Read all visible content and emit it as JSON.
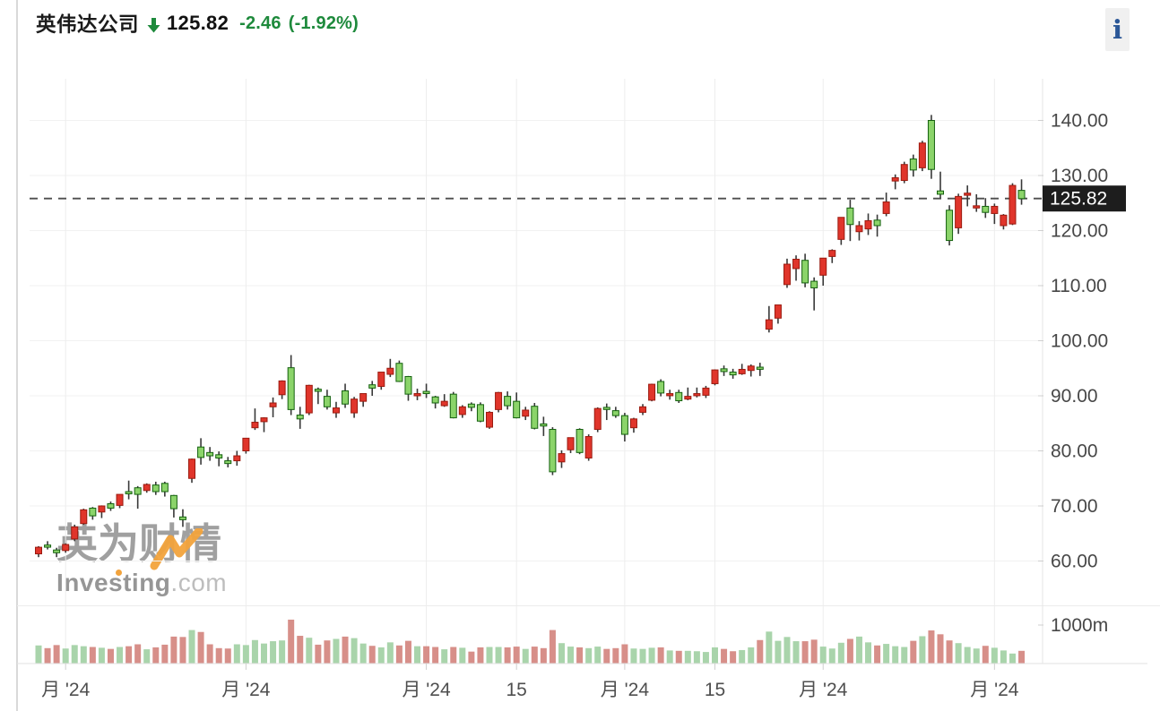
{
  "header": {
    "title": "英伟达公司",
    "price": "125.82",
    "change": "-2.46",
    "change_percent": "(-1.92%)",
    "direction": "down"
  },
  "info_button": {
    "label": "i"
  },
  "watermark": {
    "cn": "英为财情",
    "en_bold": "Investing",
    "en_suffix": ".com"
  },
  "colors": {
    "accent_green": "#1e8a3c",
    "up": "#e0352b",
    "up_border": "#9b1b10",
    "down": "#8bd46a",
    "down_border": "#15610f",
    "wick": "#383838",
    "vol_up": "#a9d4ab",
    "vol_down": "#d78f89",
    "grid_h": "#f1f1f1",
    "grid_v": "#ededed",
    "axis_line": "#e4e4e4",
    "tick": "#cfcfcf",
    "axis_text": "#474747",
    "x_text": "#4f4f4f",
    "dashed": "#4d4d4d",
    "tag_bg": "#1d1d1d",
    "tag_text": "#ffffff",
    "border_left": "#d9d9d9",
    "separator": "#ececec",
    "watermark_orange": "#f2a33c",
    "info_bg": "#f0f0f0",
    "info_text": "#2b5797"
  },
  "chart_data": {
    "type": "candlestick",
    "legend_position": "none",
    "grid": true,
    "price_axis_range": [
      52,
      147
    ],
    "last_price": 125.82,
    "last_price_label": "125.82",
    "y_ticks": [
      {
        "value": 140,
        "label": "140.00"
      },
      {
        "value": 130,
        "label": "130.00"
      },
      {
        "value": 120,
        "label": "120.00"
      },
      {
        "value": 110,
        "label": "110.00"
      },
      {
        "value": 100,
        "label": "100.00"
      },
      {
        "value": 90,
        "label": "90.00"
      },
      {
        "value": 80,
        "label": "80.00"
      },
      {
        "value": 70,
        "label": "70.00"
      },
      {
        "value": 60,
        "label": "60.00"
      }
    ],
    "volume_ticks": [
      {
        "value": 1000,
        "label": "1000m"
      }
    ],
    "volume_unit": "millions of shares",
    "x_ticks": [
      {
        "candle_index": 3,
        "label": "月 '24"
      },
      {
        "candle_index": 23,
        "label": "月 '24"
      },
      {
        "candle_index": 43,
        "label": "月 '24"
      },
      {
        "candle_index": 53,
        "label": "15"
      },
      {
        "candle_index": 65,
        "label": "月 '24"
      },
      {
        "candle_index": 75,
        "label": "15"
      },
      {
        "candle_index": 87,
        "label": "月 '24"
      },
      {
        "candle_index": 106,
        "label": "月 '24"
      }
    ],
    "candle_columns": [
      "date",
      "open",
      "high",
      "low",
      "close",
      "volume_m"
    ],
    "candles": [
      [
        "2024-01-29",
        61.3,
        62.7,
        60.7,
        62.5,
        470
      ],
      [
        "2024-01-30",
        62.9,
        63.6,
        62.1,
        62.8,
        400
      ],
      [
        "2024-01-31",
        62.0,
        62.4,
        60.7,
        61.5,
        480
      ],
      [
        "2024-02-01",
        61.9,
        63.2,
        61.5,
        63.0,
        390
      ],
      [
        "2024-02-02",
        64.0,
        66.6,
        63.6,
        66.2,
        480
      ],
      [
        "2024-02-05",
        66.8,
        69.5,
        66.6,
        69.3,
        450
      ],
      [
        "2024-02-06",
        69.6,
        69.8,
        67.5,
        68.2,
        430
      ],
      [
        "2024-02-07",
        68.9,
        70.1,
        67.8,
        70.0,
        410
      ],
      [
        "2024-02-08",
        70.4,
        70.8,
        69.1,
        69.6,
        380
      ],
      [
        "2024-02-09",
        70.1,
        72.1,
        69.6,
        72.1,
        430
      ],
      [
        "2024-02-12",
        72.6,
        74.6,
        71.2,
        72.2,
        450
      ],
      [
        "2024-02-13",
        73.3,
        73.6,
        69.5,
        72.1,
        500
      ],
      [
        "2024-02-14",
        72.8,
        74.1,
        72.4,
        73.9,
        370
      ],
      [
        "2024-02-15",
        73.8,
        74.4,
        72.0,
        72.6,
        420
      ],
      [
        "2024-02-16",
        74.1,
        74.4,
        71.7,
        72.6,
        490
      ],
      [
        "2024-02-20",
        71.9,
        72.0,
        67.9,
        69.5,
        700
      ],
      [
        "2024-02-21",
        68.0,
        69.4,
        66.2,
        67.5,
        690
      ],
      [
        "2024-02-22",
        75.0,
        78.6,
        74.2,
        78.5,
        870
      ],
      [
        "2024-02-23",
        80.7,
        82.3,
        77.5,
        78.8,
        820
      ],
      [
        "2024-02-26",
        79.7,
        80.7,
        78.2,
        79.1,
        500
      ],
      [
        "2024-02-27",
        79.3,
        79.9,
        77.2,
        78.7,
        400
      ],
      [
        "2024-02-28",
        78.2,
        78.9,
        77.0,
        77.7,
        390
      ],
      [
        "2024-02-29",
        78.2,
        80.0,
        77.3,
        79.1,
        500
      ],
      [
        "2024-03-01",
        80.0,
        82.3,
        79.5,
        82.3,
        480
      ],
      [
        "2024-03-04",
        84.2,
        87.7,
        83.8,
        85.2,
        610
      ],
      [
        "2024-03-05",
        85.3,
        86.1,
        83.4,
        86.0,
        520
      ],
      [
        "2024-03-06",
        88.0,
        89.7,
        86.1,
        88.7,
        580
      ],
      [
        "2024-03-07",
        90.2,
        92.8,
        89.4,
        92.7,
        600
      ],
      [
        "2024-03-08",
        95.1,
        97.4,
        86.5,
        87.5,
        1140
      ],
      [
        "2024-03-11",
        86.5,
        88.0,
        84.0,
        85.8,
        720
      ],
      [
        "2024-03-12",
        86.9,
        92.0,
        86.5,
        91.9,
        670
      ],
      [
        "2024-03-13",
        91.2,
        91.5,
        88.5,
        90.9,
        490
      ],
      [
        "2024-03-14",
        89.9,
        91.1,
        87.5,
        88.0,
        600
      ],
      [
        "2024-03-15",
        86.9,
        88.9,
        86.0,
        87.8,
        640
      ],
      [
        "2024-03-18",
        90.9,
        92.2,
        87.8,
        88.5,
        700
      ],
      [
        "2024-03-19",
        86.9,
        89.8,
        86.0,
        89.4,
        660
      ],
      [
        "2024-03-20",
        89.0,
        90.4,
        88.0,
        90.4,
        520
      ],
      [
        "2024-03-21",
        92.0,
        92.7,
        90.0,
        91.4,
        460
      ],
      [
        "2024-03-22",
        91.7,
        94.3,
        91.1,
        94.3,
        420
      ],
      [
        "2024-03-25",
        93.9,
        96.7,
        93.4,
        95.0,
        550
      ],
      [
        "2024-03-26",
        95.9,
        96.4,
        92.5,
        92.6,
        470
      ],
      [
        "2024-03-27",
        93.5,
        93.6,
        89.1,
        90.3,
        590
      ],
      [
        "2024-03-28",
        90.0,
        91.3,
        89.2,
        90.4,
        450
      ],
      [
        "2024-04-01",
        90.8,
        92.2,
        89.6,
        90.4,
        450
      ],
      [
        "2024-04-02",
        89.8,
        90.0,
        87.7,
        88.7,
        430
      ],
      [
        "2024-04-03",
        88.2,
        90.3,
        88.0,
        89.0,
        370
      ],
      [
        "2024-04-04",
        90.3,
        90.7,
        85.9,
        86.0,
        430
      ],
      [
        "2024-04-05",
        86.6,
        88.3,
        86.0,
        88.0,
        410
      ],
      [
        "2024-04-08",
        88.5,
        88.8,
        87.2,
        87.9,
        310
      ],
      [
        "2024-04-09",
        88.4,
        88.8,
        85.2,
        85.4,
        420
      ],
      [
        "2024-04-10",
        84.3,
        87.2,
        84.0,
        87.0,
        430
      ],
      [
        "2024-04-11",
        87.5,
        90.7,
        87.0,
        90.6,
        430
      ],
      [
        "2024-04-12",
        89.9,
        90.8,
        87.5,
        88.2,
        420
      ],
      [
        "2024-04-15",
        89.0,
        90.6,
        85.9,
        86.0,
        440
      ],
      [
        "2024-04-16",
        86.3,
        88.0,
        85.6,
        87.4,
        380
      ],
      [
        "2024-04-17",
        88.1,
        88.7,
        83.9,
        84.1,
        440
      ],
      [
        "2024-04-18",
        84.9,
        86.2,
        82.7,
        84.7,
        400
      ],
      [
        "2024-04-19",
        83.9,
        84.3,
        75.6,
        76.2,
        870
      ],
      [
        "2024-04-22",
        78.0,
        80.1,
        76.9,
        79.5,
        530
      ],
      [
        "2024-04-23",
        80.2,
        82.4,
        79.6,
        82.4,
        440
      ],
      [
        "2024-04-24",
        83.9,
        84.1,
        79.4,
        79.7,
        420
      ],
      [
        "2024-04-25",
        78.7,
        83.0,
        78.2,
        82.6,
        400
      ],
      [
        "2024-04-26",
        83.9,
        87.9,
        83.4,
        87.7,
        440
      ],
      [
        "2024-04-29",
        87.9,
        88.6,
        85.6,
        87.8,
        380
      ],
      [
        "2024-04-30",
        87.3,
        88.0,
        86.0,
        86.4,
        400
      ],
      [
        "2024-05-01",
        86.4,
        86.9,
        81.7,
        83.0,
        500
      ],
      [
        "2024-05-02",
        84.2,
        86.0,
        83.3,
        85.8,
        390
      ],
      [
        "2024-05-03",
        87.0,
        88.5,
        86.5,
        88.0,
        380
      ],
      [
        "2024-05-06",
        89.2,
        92.2,
        89.0,
        92.1,
        410
      ],
      [
        "2024-05-07",
        92.6,
        93.0,
        89.9,
        90.5,
        420
      ],
      [
        "2024-05-08",
        90.1,
        91.1,
        89.3,
        90.4,
        340
      ],
      [
        "2024-05-09",
        90.6,
        91.1,
        88.7,
        89.1,
        330
      ],
      [
        "2024-05-10",
        89.4,
        91.5,
        89.2,
        89.9,
        330
      ],
      [
        "2024-05-13",
        90.4,
        91.5,
        89.7,
        90.4,
        320
      ],
      [
        "2024-05-14",
        90.1,
        91.8,
        89.6,
        91.4,
        300
      ],
      [
        "2024-05-15",
        92.2,
        94.8,
        91.9,
        94.7,
        420
      ],
      [
        "2024-05-16",
        94.9,
        95.5,
        93.6,
        94.4,
        380
      ],
      [
        "2024-05-17",
        94.3,
        94.9,
        93.1,
        93.8,
        320
      ],
      [
        "2024-05-20",
        94.0,
        95.8,
        93.8,
        94.8,
        350
      ],
      [
        "2024-05-21",
        94.6,
        95.7,
        93.5,
        95.4,
        420
      ],
      [
        "2024-05-22",
        95.2,
        96.0,
        93.6,
        95.0,
        610
      ],
      [
        "2024-05-23",
        102.1,
        106.3,
        101.5,
        103.8,
        830
      ],
      [
        "2024-05-24",
        104.1,
        106.5,
        103.1,
        106.5,
        590
      ],
      [
        "2024-05-28",
        110.2,
        114.9,
        109.6,
        113.9,
        690
      ],
      [
        "2024-05-29",
        113.1,
        115.5,
        110.9,
        114.8,
        580
      ],
      [
        "2024-05-30",
        114.6,
        115.8,
        109.7,
        110.5,
        580
      ],
      [
        "2024-05-31",
        110.8,
        111.5,
        105.5,
        109.6,
        620
      ],
      [
        "2024-06-03",
        111.9,
        115.0,
        110.0,
        115.0,
        440
      ],
      [
        "2024-06-04",
        115.3,
        116.6,
        114.1,
        116.4,
        390
      ],
      [
        "2024-06-05",
        118.4,
        122.4,
        117.4,
        122.4,
        540
      ],
      [
        "2024-06-06",
        124.1,
        125.6,
        118.1,
        121.1,
        640
      ],
      [
        "2024-06-07",
        119.8,
        121.7,
        118.2,
        120.9,
        700
      ],
      [
        "2024-06-10",
        120.3,
        123.1,
        119.2,
        121.8,
        550
      ],
      [
        "2024-06-11",
        121.9,
        122.9,
        118.9,
        120.9,
        470
      ],
      [
        "2024-06-12",
        123.1,
        126.9,
        122.6,
        125.2,
        510
      ],
      [
        "2024-06-13",
        129.0,
        130.2,
        127.5,
        129.6,
        450
      ],
      [
        "2024-06-14",
        129.1,
        132.5,
        128.6,
        132.0,
        430
      ],
      [
        "2024-06-17",
        133.0,
        133.8,
        129.8,
        131.0,
        590
      ],
      [
        "2024-06-18",
        131.4,
        136.3,
        130.8,
        135.9,
        710
      ],
      [
        "2024-06-20",
        140.0,
        141.0,
        129.4,
        131.1,
        860
      ],
      [
        "2024-06-21",
        127.2,
        130.7,
        125.9,
        126.6,
        760
      ],
      [
        "2024-06-24",
        123.7,
        124.6,
        117.3,
        118.2,
        600
      ],
      [
        "2024-06-25",
        120.5,
        126.7,
        119.4,
        126.2,
        530
      ],
      [
        "2024-06-26",
        126.5,
        128.2,
        124.4,
        126.8,
        430
      ],
      [
        "2024-06-27",
        124.1,
        126.6,
        123.4,
        124.5,
        390
      ],
      [
        "2024-06-28",
        124.4,
        125.9,
        122.3,
        123.3,
        460
      ],
      [
        "2024-07-01",
        123.1,
        124.9,
        121.2,
        124.4,
        410
      ],
      [
        "2024-07-02",
        120.9,
        123.0,
        120.2,
        122.8,
        340
      ],
      [
        "2024-07-03",
        121.2,
        128.6,
        121.0,
        128.2,
        260
      ],
      [
        "2024-07-05",
        127.3,
        129.3,
        124.7,
        125.8,
        330
      ]
    ],
    "color_convention": "red = up day, green = down day (Chinese convention); volume: green = up, red = down"
  }
}
